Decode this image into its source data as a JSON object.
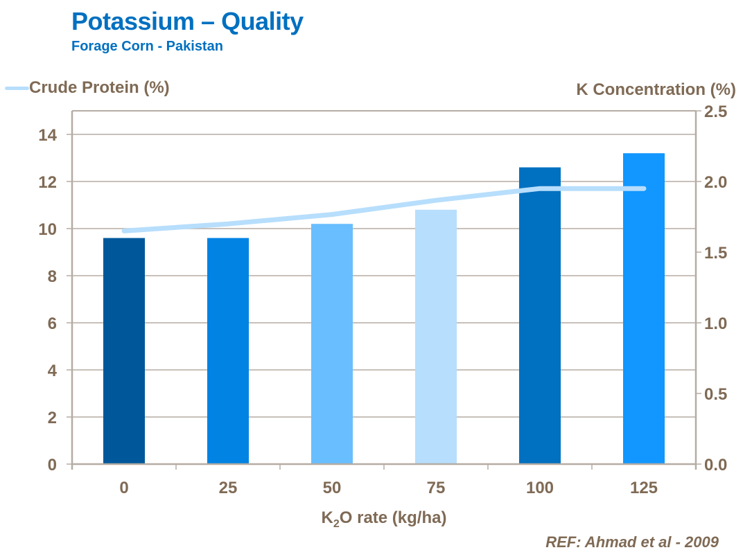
{
  "header": {
    "title": "Potassium – Quality",
    "subtitle": "Forage Corn - Pakistan"
  },
  "reference": "REF: Ahmad et al - 2009",
  "chart_data": {
    "type": "bar",
    "title": "Potassium – Quality",
    "subtitle": "Forage Corn - Pakistan",
    "xlabel": "K2O rate (kg/ha)",
    "xlabel_parts": {
      "pre": "K",
      "sub": "2",
      "post": "O rate (kg/ha)"
    },
    "categories": [
      "0",
      "25",
      "50",
      "75",
      "100",
      "125"
    ],
    "series": [
      {
        "name": "K Concentration (%)",
        "type": "bar",
        "axis": "right",
        "values": [
          1.6,
          1.6,
          1.7,
          1.8,
          2.1,
          2.2
        ],
        "colors": [
          "#00589B",
          "#0083E3",
          "#69BEFF",
          "#B7DEFC",
          "#0070C0",
          "#1197FF"
        ]
      },
      {
        "name": "Crude Protein (%)",
        "type": "line",
        "axis": "left",
        "values": [
          9.9,
          10.2,
          10.6,
          11.2,
          11.7,
          11.7
        ],
        "color": "#B7DEFC"
      }
    ],
    "left_axis": {
      "label": "Crude Protein (%)",
      "ylim": [
        0,
        15
      ],
      "ticks": [
        0,
        2,
        4,
        6,
        8,
        10,
        12,
        14
      ]
    },
    "right_axis": {
      "label": "K Concentration (%)",
      "ylim": [
        0,
        2.5
      ],
      "ticks": [
        "0.0",
        "0.5",
        "1.0",
        "1.5",
        "2.0",
        "2.5"
      ]
    },
    "grid": true,
    "legend": "top-left",
    "colors": {
      "axis": "#B5ACA3",
      "text": "#7F6A55",
      "title": "#0070C0"
    }
  }
}
